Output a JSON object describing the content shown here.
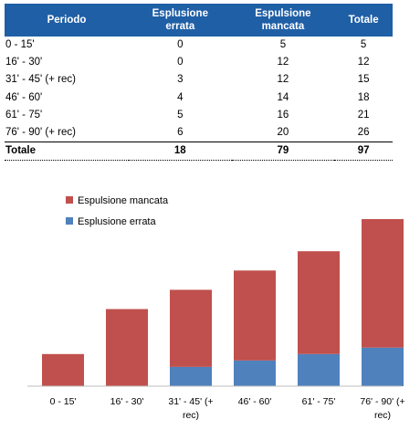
{
  "table": {
    "headers": {
      "period": "Periodo",
      "errata_line1": "Esplusione",
      "errata_line2": "errata",
      "mancata_line1": "Espulsione",
      "mancata_line2": "mancata",
      "totale": "Totale"
    },
    "rows": [
      {
        "period": "0 - 15'",
        "errata": "0",
        "mancata": "5",
        "totale": "5"
      },
      {
        "period": "16' - 30'",
        "errata": "0",
        "mancata": "12",
        "totale": "12"
      },
      {
        "period": "31' - 45' (+ rec)",
        "errata": "3",
        "mancata": "12",
        "totale": "15"
      },
      {
        "period": "46' - 60'",
        "errata": "4",
        "mancata": "14",
        "totale": "18"
      },
      {
        "period": "61' - 75'",
        "errata": "5",
        "mancata": "16",
        "totale": "21"
      },
      {
        "period": "76' - 90' (+ rec)",
        "errata": "6",
        "mancata": "20",
        "totale": "26"
      }
    ],
    "total": {
      "period": "Totale",
      "errata": "18",
      "mancata": "79",
      "totale": "97"
    }
  },
  "chart_data": {
    "type": "bar",
    "stacked": true,
    "categories": [
      [
        "0 - 15'"
      ],
      [
        "16' - 30'"
      ],
      [
        "31' - 45' (+",
        "rec)"
      ],
      [
        "46' - 60'"
      ],
      [
        "61' - 75'"
      ],
      [
        "76' - 90' (+",
        "rec)"
      ]
    ],
    "series": [
      {
        "name": "Esplusione errata",
        "color": "#4f81bd",
        "values": [
          0,
          0,
          3,
          4,
          5,
          6
        ]
      },
      {
        "name": "Espulsione mancata",
        "color": "#c0504d",
        "values": [
          5,
          12,
          12,
          14,
          16,
          20
        ]
      }
    ],
    "legend_order": [
      "Espulsione mancata",
      "Esplusione errata"
    ],
    "legend_position": "top-left",
    "ylim": [
      0,
      26
    ],
    "grid": false
  }
}
